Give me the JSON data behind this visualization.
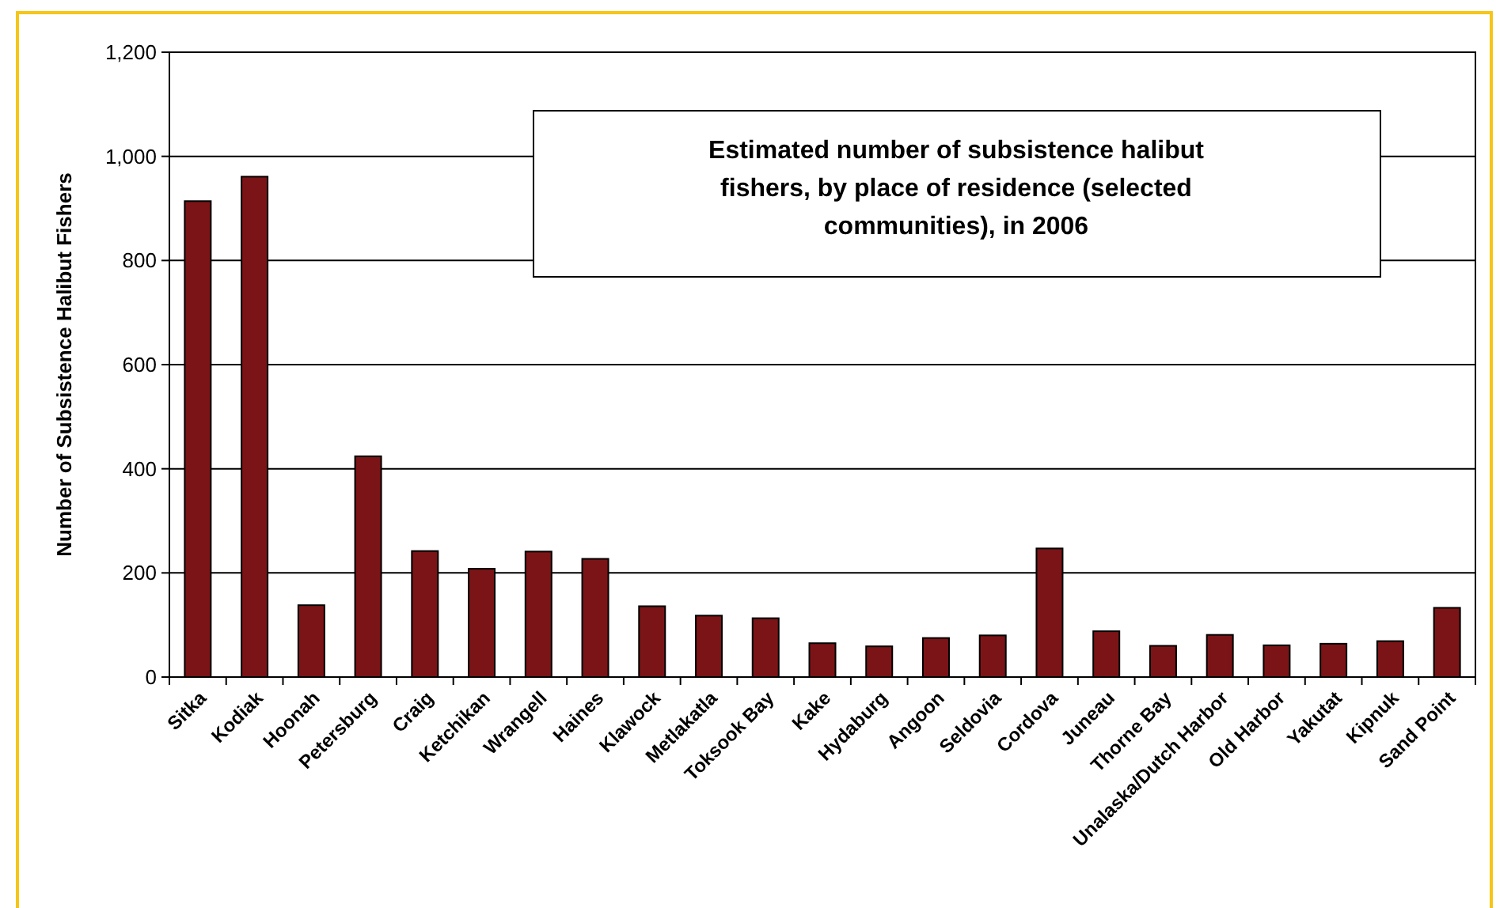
{
  "chart_data": {
    "type": "bar",
    "title": "Estimated number of subsistence halibut fishers, by place of residence (selected communities), in 2006",
    "ylabel": "Number of Subsistence Halibut Fishers",
    "categories": [
      "Sitka",
      "Kodiak",
      "Hoonah",
      "Petersburg",
      "Craig",
      "Ketchikan",
      "Wrangell",
      "Haines",
      "Klawock",
      "Metlakatla",
      "Toksook Bay",
      "Kake",
      "Hydaburg",
      "Angoon",
      "Seldovia",
      "Cordova",
      "Juneau",
      "Thorne Bay",
      "Unalaska/Dutch Harbor",
      "Old Harbor",
      "Yakutat",
      "Kipnuk",
      "Sand Point"
    ],
    "values": [
      914,
      961,
      138,
      424,
      242,
      208,
      241,
      227,
      136,
      118,
      113,
      65,
      59,
      75,
      80,
      247,
      88,
      60,
      81,
      61,
      64,
      69,
      133
    ],
    "color": "#7b1416",
    "ylim": [
      0,
      1200
    ],
    "yticks": [
      0,
      200,
      400,
      600,
      800,
      {
        "value": 1000,
        "label": "1,000"
      },
      {
        "value": 1200,
        "label": "1,200"
      }
    ],
    "grid": "y"
  }
}
